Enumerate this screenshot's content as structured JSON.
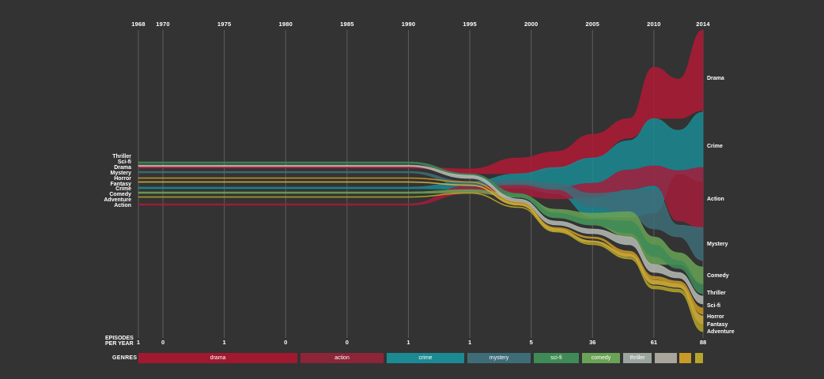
{
  "chart_data": {
    "type": "area",
    "subtype": "streamgraph",
    "years": [
      1968,
      1970,
      1975,
      1980,
      1985,
      1990,
      1995,
      2000,
      2005,
      2010,
      2014
    ],
    "episodes_label": "EPISODES PER YEAR",
    "episodes_per_year": [
      "1",
      "0",
      "1",
      "0",
      "0",
      "1",
      "1",
      "5",
      "36",
      "61",
      "88"
    ],
    "left_labels": [
      "Thriller",
      "Sci-fi",
      "Drama",
      "Mystery",
      "Horror",
      "Fantasy",
      "Crime",
      "Comedy",
      "Adventure",
      "Action"
    ],
    "right_labels": [
      "Drama",
      "Crime",
      "Action",
      "Mystery",
      "Comedy",
      "Thriller",
      "Sci-fi",
      "Horror",
      "Fantasy",
      "Adventure"
    ],
    "genres_label": "GENRES",
    "legend": [
      {
        "name": "drama",
        "color": "#a0192f"
      },
      {
        "name": "action",
        "color": "#8c2538"
      },
      {
        "name": "crime",
        "color": "#1b8a93"
      },
      {
        "name": "mystery",
        "color": "#3e6d78"
      },
      {
        "name": "sci-fi",
        "color": "#3f8b57"
      },
      {
        "name": "comedy",
        "color": "#6aa356"
      },
      {
        "name": "thriller",
        "color": "#9ba59e"
      },
      {
        "name": "",
        "color": "#a8a69a"
      },
      {
        "name": "",
        "color": "#c99a25"
      },
      {
        "name": "",
        "color": "#b5a52a"
      }
    ],
    "series": [
      {
        "name": "Drama",
        "color": "#b01a35",
        "x": [
          1968,
          1990,
          1995,
          1999,
          2002,
          2005,
          2008,
          2010,
          2012,
          2014
        ],
        "top": [
          211,
          211,
          214,
          200,
          192,
          170,
          150,
          85,
          100,
          38
        ],
        "bottom": [
          213,
          213,
          220,
          220,
          214,
          200,
          175,
          150,
          150,
          140
        ]
      },
      {
        "name": "Crime",
        "color": "#1b8a93",
        "x": [
          1968,
          1990,
          1995,
          1999,
          2002,
          2005,
          2008,
          2010,
          2012,
          2014
        ],
        "top": [
          237,
          237,
          230,
          220,
          212,
          200,
          178,
          150,
          165,
          142
        ],
        "bottom": [
          239,
          239,
          240,
          238,
          245,
          275,
          275,
          270,
          220,
          230
        ]
      },
      {
        "name": "Action",
        "color": "#a31d3b",
        "x": [
          1968,
          1990,
          1995,
          1999,
          2002,
          2005,
          2008,
          2010,
          2012,
          2014
        ],
        "top": [
          258,
          258,
          235,
          232,
          238,
          232,
          215,
          210,
          216,
          212
        ],
        "bottom": [
          260,
          260,
          245,
          248,
          252,
          250,
          240,
          235,
          280,
          290
        ]
      },
      {
        "name": "Mystery",
        "color": "#3e6d78",
        "x": [
          1968,
          1990,
          1995,
          1999,
          2002,
          2005,
          2008,
          2010,
          2012,
          2014
        ],
        "top": [
          217,
          217,
          230,
          228,
          232,
          245,
          242,
          240,
          285,
          288
        ],
        "bottom": [
          219,
          219,
          236,
          234,
          240,
          262,
          272,
          290,
          300,
          330
        ]
      },
      {
        "name": "Comedy",
        "color": "#6aa356",
        "x": [
          1968,
          1990,
          1995,
          1999,
          2002,
          2005,
          2008,
          2010,
          2012,
          2014
        ],
        "top": [
          243,
          243,
          240,
          246,
          265,
          270,
          268,
          300,
          320,
          338
        ],
        "bottom": [
          245,
          245,
          244,
          250,
          275,
          285,
          300,
          335,
          335,
          360
        ]
      },
      {
        "name": "Sci-fi",
        "color": "#3f8b57",
        "x": [
          1968,
          1990,
          1995,
          1999,
          2002,
          2005,
          2008,
          2010,
          2012,
          2014
        ],
        "top": [
          205,
          205,
          220,
          245,
          270,
          278,
          280,
          310,
          330,
          360
        ],
        "bottom": [
          207,
          207,
          224,
          250,
          276,
          285,
          295,
          325,
          340,
          372
        ]
      },
      {
        "name": "Thriller",
        "color": "#b7bcb6",
        "x": [
          1968,
          1990,
          1995,
          1999,
          2002,
          2005,
          2008,
          2010,
          2012,
          2014
        ],
        "top": [
          209,
          209,
          222,
          252,
          280,
          290,
          300,
          335,
          345,
          375
        ],
        "bottom": [
          211,
          211,
          226,
          256,
          285,
          296,
          310,
          345,
          352,
          385
        ]
      },
      {
        "name": "Horror",
        "color": "#c99a25",
        "x": [
          1968,
          1990,
          1995,
          1999,
          2002,
          2005,
          2008,
          2010,
          2012,
          2014
        ],
        "top": [
          225,
          225,
          230,
          256,
          288,
          300,
          318,
          350,
          356,
          390
        ],
        "bottom": [
          226,
          226,
          231,
          258,
          290,
          302,
          322,
          354,
          360,
          398
        ]
      },
      {
        "name": "Fantasy",
        "color": "#d8b43a",
        "x": [
          1968,
          1990,
          1995,
          1999,
          2002,
          2005,
          2008,
          2010,
          2012,
          2014
        ],
        "top": [
          230,
          230,
          234,
          258,
          290,
          305,
          322,
          355,
          360,
          400
        ],
        "bottom": [
          231,
          231,
          235,
          260,
          293,
          307,
          325,
          360,
          364,
          410
        ]
      },
      {
        "name": "Adventure",
        "color": "#b5a52a",
        "x": [
          1968,
          1990,
          1995,
          1999,
          2002,
          2005,
          2008,
          2010,
          2012,
          2014
        ],
        "top": [
          249,
          249,
          244,
          262,
          292,
          308,
          326,
          362,
          366,
          410
        ],
        "bottom": [
          250,
          250,
          245,
          263,
          294,
          310,
          328,
          366,
          370,
          420
        ]
      }
    ]
  }
}
